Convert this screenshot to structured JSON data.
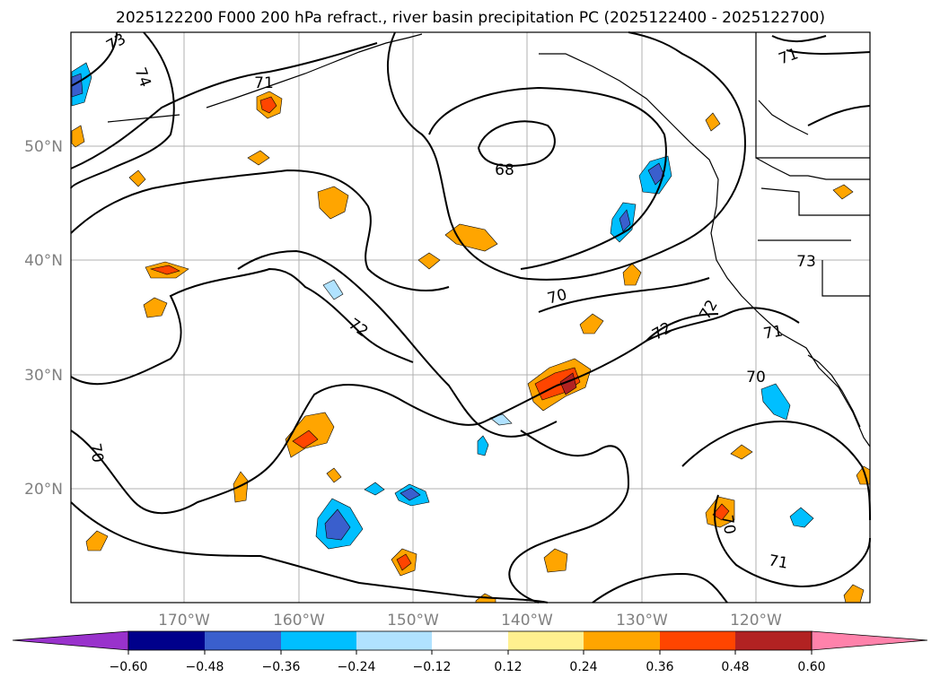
{
  "title": "2025122200 F000 200 hPa refract., river basin precipitation PC (2025122400 - 2025122700)",
  "map": {
    "lat_labels": [
      "50°N",
      "40°N",
      "30°N",
      "20°N"
    ],
    "lon_labels": [
      "170°W",
      "160°W",
      "150°W",
      "140°W",
      "130°W",
      "120°W"
    ]
  },
  "contour_labels": [
    "73",
    "74",
    "71",
    "71",
    "68",
    "72",
    "70",
    "72",
    "72",
    "73",
    "71",
    "70",
    "70",
    "70",
    "71"
  ],
  "colorbar": {
    "colors": [
      "#9932cc",
      "#00008b",
      "#3a5fcd",
      "#00bfff",
      "#b0e2ff",
      "#ffffff",
      "#fff08f",
      "#ffa500",
      "#ff4500",
      "#b22222",
      "#ff82ab"
    ],
    "tick_labels": [
      "−0.60",
      "−0.48",
      "−0.36",
      "−0.24",
      "−0.12",
      "0.12",
      "0.24",
      "0.36",
      "0.48",
      "0.60"
    ]
  }
}
